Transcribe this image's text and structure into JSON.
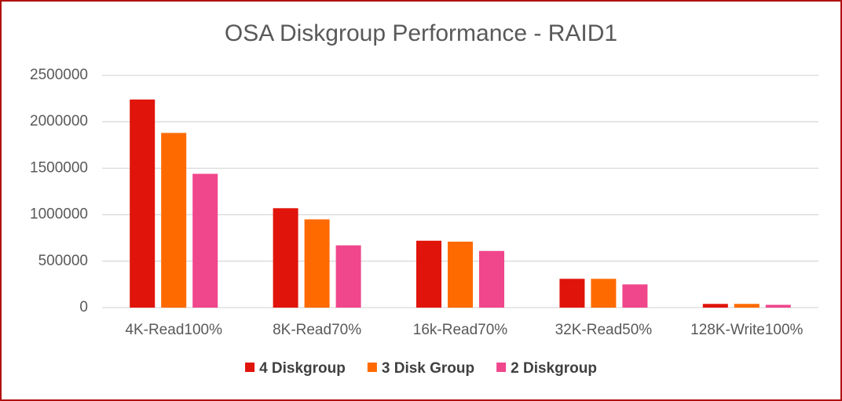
{
  "chart_data": {
    "type": "bar",
    "title": "OSA Diskgroup Performance - RAID1",
    "categories": [
      "4K-Read100%",
      "8K-Read70%",
      "16k-Read70%",
      "32K-Read50%",
      "128K-Write100%"
    ],
    "series": [
      {
        "name": "4 Diskgroup",
        "color": "#e0140a",
        "values": [
          2240000,
          1070000,
          720000,
          310000,
          40000
        ]
      },
      {
        "name": "3 Disk Group",
        "color": "#ff6a00",
        "values": [
          1880000,
          950000,
          710000,
          310000,
          40000
        ]
      },
      {
        "name": "2 Diskgroup",
        "color": "#f0468c",
        "values": [
          1440000,
          670000,
          610000,
          250000,
          30000
        ]
      }
    ],
    "ylim": [
      0,
      2500000
    ],
    "yticks": [
      0,
      500000,
      1000000,
      1500000,
      2000000,
      2500000
    ],
    "grid": true,
    "legend": "bottom"
  }
}
